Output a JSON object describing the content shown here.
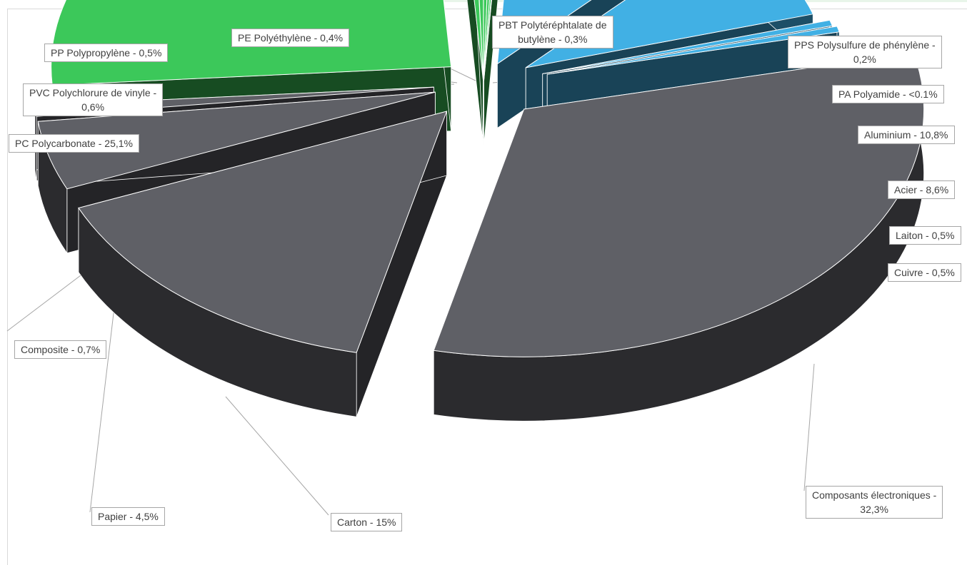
{
  "chart_data": {
    "type": "pie",
    "title": "",
    "three_d": true,
    "exploded": true,
    "legend": "none",
    "categories": [
      "PE Polyéthylène",
      "PBT Polytéréphtalate de butylène",
      "PPS Polysulfure de phénylène",
      "PA Polyamide",
      "Aluminium",
      "Acier",
      "Laiton",
      "Cuivre",
      "Composants électroniques",
      "Carton",
      "Papier",
      "Composite",
      "PC Polycarbonate",
      "PVC Polychlorure de vinyle",
      "PP Polypropylène"
    ],
    "values": [
      0.4,
      0.3,
      0.2,
      0.05,
      10.8,
      8.6,
      0.5,
      0.5,
      32.3,
      15,
      4.5,
      0.7,
      25.1,
      0.6,
      0.5
    ],
    "slices": [
      {
        "label": "PE Polyéthylène - 0,4%",
        "color": "#3cc85a"
      },
      {
        "label": "PBT Polytéréphtalate de butylène - 0,3%",
        "color": "#3cc85a"
      },
      {
        "label": "PPS Polysulfure de phénylène - 0,2%",
        "color": "#3cc85a"
      },
      {
        "label": "PA Polyamide - <0.1%",
        "color": "#3cc85a"
      },
      {
        "label": "Aluminium - 10,8%",
        "color": "#41b0e4"
      },
      {
        "label": "Acier - 8,6%",
        "color": "#41b0e4"
      },
      {
        "label": "Laiton - 0,5%",
        "color": "#41b0e4"
      },
      {
        "label": "Cuivre - 0,5%",
        "color": "#41b0e4"
      },
      {
        "label": "Composants électroniques - 32,3%",
        "color": "#5f6066"
      },
      {
        "label": "Carton - 15%",
        "color": "#5f6066"
      },
      {
        "label": "Papier - 4,5%",
        "color": "#5f6066"
      },
      {
        "label": "Composite - 0,7%",
        "color": "#5f6066"
      },
      {
        "label": "PC Polycarbonate - 25,1%",
        "color": "#3cc85a"
      },
      {
        "label": "PVC Polychlorure de vinyle - 0,6%",
        "color": "#3cc85a"
      },
      {
        "label": "PP Polypropylène - 0,5%",
        "color": "#3cc85a"
      }
    ]
  },
  "labels": {
    "pe": "PE Polyéthylène - 0,4%",
    "pbt_line1": "PBT Polytéréphtalate de",
    "pbt_line2": "butylène - 0,3%",
    "pps_line1": "PPS Polysulfure de phénylène -",
    "pps_line2": "0,2%",
    "pa": "PA Polyamide - <0.1%",
    "aluminium": "Aluminium - 10,8%",
    "acier": "Acier - 8,6%",
    "laiton": "Laiton - 0,5%",
    "cuivre": "Cuivre - 0,5%",
    "composants_line1": "Composants électroniques -",
    "composants_line2": "32,3%",
    "carton": "Carton - 15%",
    "papier": "Papier - 4,5%",
    "composite": "Composite - 0,7%",
    "pc": "PC Polycarbonate - 25,1%",
    "pvc_line1": "PVC Polychlorure de vinyle -",
    "pvc_line2": "0,6%",
    "pp": "PP Polypropylène - 0,5%"
  }
}
